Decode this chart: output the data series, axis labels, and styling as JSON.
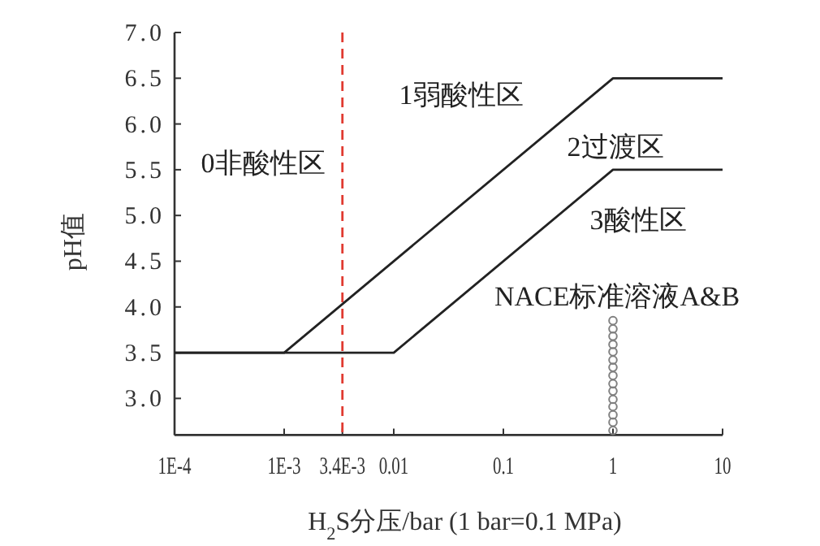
{
  "chart_data": {
    "type": "line",
    "log": "x",
    "grid": false,
    "xlabel": "H$_{2}$S分压/bar (1 bar=0.1 MPa)",
    "ylabel": "pH值",
    "xlim": [
      0.0001,
      10
    ],
    "ylim": [
      2.6,
      7.0
    ],
    "xticks": [
      {
        "value": 0.0001,
        "label": "1E-4"
      },
      {
        "value": 0.001,
        "label": "1E-3"
      },
      {
        "value": 0.0034,
        "label": "3.4E-3"
      },
      0.01,
      0.1,
      1,
      10
    ],
    "yticks": [
      {
        "value": 3.0,
        "label": "3.0"
      },
      3.5,
      {
        "value": 4.0,
        "label": "4.0"
      },
      4.5,
      {
        "value": 5.0,
        "label": "5.0"
      },
      5.5,
      {
        "value": 6.0,
        "label": "6.0"
      },
      6.5,
      {
        "value": 7.0,
        "label": "7.0"
      }
    ],
    "series": [
      {
        "type": "line",
        "color": "#222222",
        "line_style": "solid",
        "marker": "none",
        "x": [
          0.0001,
          0.001,
          1,
          10
        ],
        "values": [
          3.5,
          3.5,
          6.5,
          6.5
        ]
      },
      {
        "type": "line",
        "color": "#222222",
        "line_style": "solid",
        "marker": "none",
        "x": [
          0.0001,
          0.01,
          1,
          10
        ],
        "values": [
          3.5,
          3.5,
          5.5,
          5.5
        ]
      },
      {
        "type": "scatter",
        "color": "#808080",
        "marker": "circle",
        "x": [
          1,
          1,
          1,
          1,
          1,
          1,
          1,
          1,
          1,
          1,
          1,
          1,
          1,
          1,
          1
        ],
        "values": [
          2.65,
          2.74,
          2.82,
          2.91,
          2.99,
          3.08,
          3.16,
          3.25,
          3.34,
          3.42,
          3.51,
          3.59,
          3.68,
          3.76,
          3.85
        ]
      }
    ],
    "ref_lines": [
      {
        "axis": "x",
        "value": 0.0034,
        "color": "#e03a30",
        "line_style": "dashed"
      }
    ],
    "annotations": [
      "0非酸性区",
      "1弱酸性区",
      "2过渡区",
      "3酸性区",
      "NACE标准溶液A&B"
    ]
  }
}
